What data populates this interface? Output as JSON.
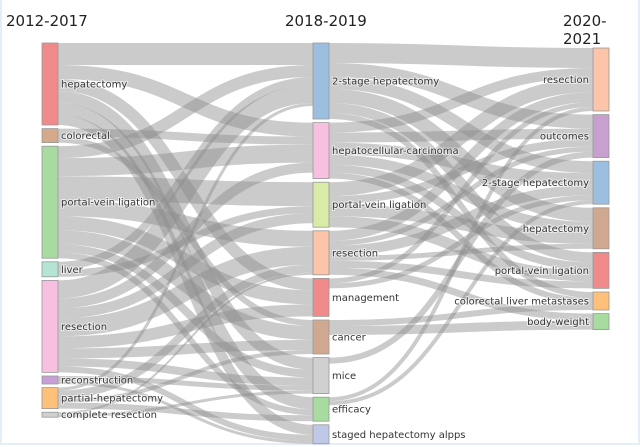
{
  "columns": [
    "2012-2017",
    "2018-2019",
    "2020-2021"
  ],
  "chart_data": {
    "type": "sankey",
    "nodes": [
      [
        {
          "id": "a0",
          "label": "hepatectomy",
          "color": "#f08a8a"
        },
        {
          "id": "a1",
          "label": "colorectal",
          "color": "#d4a98c"
        },
        {
          "id": "a2",
          "label": "portal-vein ligation",
          "color": "#a8dba0"
        },
        {
          "id": "a3",
          "label": "liver",
          "color": "#b4e4d4"
        },
        {
          "id": "a4",
          "label": "resection",
          "color": "#f8c0e0"
        },
        {
          "id": "a5",
          "label": "reconstruction",
          "color": "#c8a0d8"
        },
        {
          "id": "a6",
          "label": "partial-hepatectomy",
          "color": "#ffc07a"
        },
        {
          "id": "a7",
          "label": "complete resection",
          "color": "#d0d0d0"
        }
      ],
      [
        {
          "id": "b0",
          "label": "2-stage hepatectomy",
          "color": "#9cbfe0"
        },
        {
          "id": "b1",
          "label": "hepatocellular-carcinoma",
          "color": "#f8c0e0"
        },
        {
          "id": "b2",
          "label": "portal-vein ligation",
          "color": "#d8eca8"
        },
        {
          "id": "b3",
          "label": "resection",
          "color": "#fcc4a8"
        },
        {
          "id": "b4",
          "label": "management",
          "color": "#f08a8a"
        },
        {
          "id": "b5",
          "label": "cancer",
          "color": "#d0a890"
        },
        {
          "id": "b6",
          "label": "mice",
          "color": "#d0d0d0"
        },
        {
          "id": "b7",
          "label": "efficacy",
          "color": "#a8dba0"
        },
        {
          "id": "b8",
          "label": "staged hepatectomy alpps",
          "color": "#c0c8e8"
        }
      ],
      [
        {
          "id": "c0",
          "label": "resection",
          "color": "#fcc4a8"
        },
        {
          "id": "c1",
          "label": "outcomes",
          "color": "#c8a0d0"
        },
        {
          "id": "c2",
          "label": "2-stage hepatectomy",
          "color": "#9cbfe0"
        },
        {
          "id": "c3",
          "label": "hepatectomy",
          "color": "#d0a890"
        },
        {
          "id": "c4",
          "label": "portal-vein ligation",
          "color": "#f08a8a"
        },
        {
          "id": "c5",
          "label": "colorectal liver metastases",
          "color": "#ffc07a"
        },
        {
          "id": "c6",
          "label": "body-weight",
          "color": "#a8dba0"
        }
      ]
    ],
    "links": [
      [
        "a0",
        "b0",
        22
      ],
      [
        "a0",
        "b1",
        14
      ],
      [
        "a0",
        "b4",
        12
      ],
      [
        "a0",
        "b6",
        12
      ],
      [
        "a0",
        "b7",
        12
      ],
      [
        "a0",
        "b8",
        10
      ],
      [
        "a1",
        "b1",
        8
      ],
      [
        "a1",
        "b5",
        6
      ],
      [
        "a2",
        "b0",
        12
      ],
      [
        "a2",
        "b1",
        18
      ],
      [
        "a2",
        "b2",
        24
      ],
      [
        "a2",
        "b3",
        16
      ],
      [
        "a2",
        "b4",
        14
      ],
      [
        "a2",
        "b5",
        14
      ],
      [
        "a2",
        "b6",
        8
      ],
      [
        "a2",
        "b7",
        6
      ],
      [
        "a3",
        "b0",
        8
      ],
      [
        "a3",
        "b2",
        7
      ],
      [
        "a4",
        "b0",
        18
      ],
      [
        "a4",
        "b1",
        10
      ],
      [
        "a4",
        "b2",
        10
      ],
      [
        "a4",
        "b3",
        18
      ],
      [
        "a4",
        "b4",
        12
      ],
      [
        "a4",
        "b5",
        10
      ],
      [
        "a4",
        "b6",
        8
      ],
      [
        "a4",
        "b8",
        6
      ],
      [
        "a5",
        "b6",
        5
      ],
      [
        "a5",
        "b8",
        3
      ],
      [
        "a6",
        "b0",
        3
      ],
      [
        "a6",
        "b3",
        8
      ],
      [
        "a6",
        "b5",
        4
      ],
      [
        "a6",
        "b7",
        6
      ],
      [
        "a7",
        "b3",
        2
      ],
      [
        "a7",
        "b6",
        3
      ],
      [
        "b0",
        "c0",
        20
      ],
      [
        "b0",
        "c1",
        14
      ],
      [
        "b0",
        "c2",
        12
      ],
      [
        "b0",
        "c3",
        14
      ],
      [
        "b0",
        "c4",
        10
      ],
      [
        "b0",
        "c5",
        6
      ],
      [
        "b1",
        "c0",
        10
      ],
      [
        "b1",
        "c1",
        10
      ],
      [
        "b1",
        "c2",
        12
      ],
      [
        "b1",
        "c3",
        10
      ],
      [
        "b1",
        "c4",
        8
      ],
      [
        "b1",
        "c5",
        6
      ],
      [
        "b2",
        "c0",
        14
      ],
      [
        "b2",
        "c1",
        8
      ],
      [
        "b2",
        "c3",
        12
      ],
      [
        "b2",
        "c4",
        11
      ],
      [
        "b3",
        "c0",
        10
      ],
      [
        "b3",
        "c1",
        5
      ],
      [
        "b3",
        "c2",
        10
      ],
      [
        "b3",
        "c3",
        5
      ],
      [
        "b3",
        "c4",
        7
      ],
      [
        "b3",
        "c6",
        7
      ],
      [
        "b4",
        "c0",
        5
      ],
      [
        "b4",
        "c2",
        5
      ],
      [
        "b5",
        "c5",
        6
      ],
      [
        "b5",
        "c6",
        9
      ],
      [
        "b6",
        "c1",
        6
      ],
      [
        "b7",
        "c0",
        4
      ],
      [
        "b7",
        "c2",
        4
      ]
    ]
  }
}
